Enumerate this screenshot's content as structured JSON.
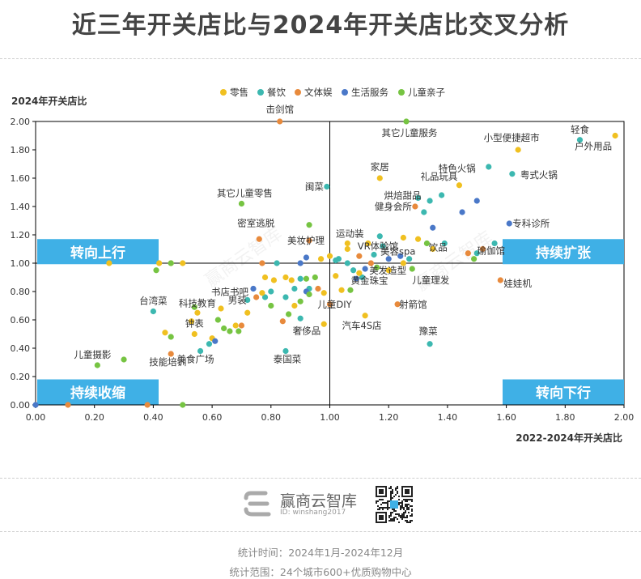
{
  "page": {
    "title": "近三年开关店比与2024年开关店比交叉分析",
    "logo_name": "赢商云智库",
    "logo_id": "ID: winshang2017",
    "footer_time": "统计时间：2024年1月-2024年12月",
    "footer_scope": "统计范围：24个城市600+优质购物中心"
  },
  "colors": {
    "零售": "#f0c020",
    "餐饮": "#3cb8b0",
    "文体娱": "#e88a3c",
    "生活服务": "#4a78c8",
    "儿童亲子": "#76c442",
    "quadrant_box": "#3fb0e6"
  },
  "chart_data": {
    "type": "scatter",
    "title": "近三年开关店比与2024年开关店比交叉分析",
    "xlabel": "2022-2024年开关店比",
    "ylabel": "2024年开关店比",
    "xlim": [
      0,
      2
    ],
    "ylim": [
      0,
      2
    ],
    "xticks": [
      "0.00",
      "0.20",
      "0.40",
      "0.60",
      "0.80",
      "1.00",
      "1.20",
      "1.40",
      "1.60",
      "1.80",
      "2.00"
    ],
    "yticks": [
      "0.00",
      "0.20",
      "0.40",
      "0.60",
      "0.80",
      "1.00",
      "1.20",
      "1.40",
      "1.60",
      "1.80",
      "2.00"
    ],
    "reference_lines": {
      "x": 1.0,
      "y": 1.0
    },
    "legend": [
      "零售",
      "餐饮",
      "文体娱",
      "生活服务",
      "儿童亲子"
    ],
    "legend_position": "top",
    "grid": false,
    "quadrant_labels": [
      "转向上行",
      "持续扩张",
      "持续收缩",
      "转向下行"
    ],
    "points": [
      {
        "x": 0.83,
        "y": 2.0,
        "c": "文体娱",
        "label": "击剑馆"
      },
      {
        "x": 1.26,
        "y": 2.0,
        "c": "儿童亲子",
        "label": "其它儿童服务"
      },
      {
        "x": 1.97,
        "y": 1.9,
        "c": "零售",
        "label": "户外用品"
      },
      {
        "x": 1.85,
        "y": 1.87,
        "c": "餐饮",
        "label": "轻食"
      },
      {
        "x": 1.64,
        "y": 1.8,
        "c": "零售",
        "label": "小型便捷超市"
      },
      {
        "x": 1.54,
        "y": 1.68,
        "c": "餐饮",
        "label": "特色火锅"
      },
      {
        "x": 1.62,
        "y": 1.63,
        "c": "餐饮",
        "label": "粤式火锅"
      },
      {
        "x": 1.17,
        "y": 1.6,
        "c": "零售",
        "label": "家居"
      },
      {
        "x": 0.99,
        "y": 1.54,
        "c": "餐饮",
        "label": "闽菜"
      },
      {
        "x": 1.44,
        "y": 1.55,
        "c": "零售",
        "label": "礼品玩具"
      },
      {
        "x": 1.3,
        "y": 1.46,
        "c": "餐饮",
        "label": "烘焙甜品"
      },
      {
        "x": 0.7,
        "y": 1.42,
        "c": "儿童亲子",
        "label": "其它儿童零售"
      },
      {
        "x": 1.29,
        "y": 1.4,
        "c": "文体娱",
        "label": "健身会所"
      },
      {
        "x": 1.61,
        "y": 1.28,
        "c": "生活服务",
        "label": "专科诊所"
      },
      {
        "x": 0.76,
        "y": 1.17,
        "c": "文体娱",
        "label": "密室逃脱"
      },
      {
        "x": 1.06,
        "y": 1.14,
        "c": "零售",
        "label": "运动装"
      },
      {
        "x": 0.93,
        "y": 1.16,
        "c": "文体娱",
        "label": "美妆护理"
      },
      {
        "x": 1.18,
        "y": 1.12,
        "c": "餐饮",
        "label": "VR体验馆"
      },
      {
        "x": 1.35,
        "y": 1.1,
        "c": "零售",
        "label": "饮品"
      },
      {
        "x": 1.52,
        "y": 1.1,
        "c": "文体娱",
        "label": "瑜伽馆"
      },
      {
        "x": 1.24,
        "y": 1.05,
        "c": "生活服务",
        "label": "美容spa"
      },
      {
        "x": 1.2,
        "y": 0.95,
        "c": "零售",
        "label": "美发造型"
      },
      {
        "x": 1.28,
        "y": 0.96,
        "c": "儿童亲子",
        "label": "儿童理发"
      },
      {
        "x": 1.58,
        "y": 0.88,
        "c": "文体娱",
        "label": "娃娃机"
      },
      {
        "x": 0.74,
        "y": 0.82,
        "c": "生活服务",
        "label": "书店书吧"
      },
      {
        "x": 1.11,
        "y": 0.9,
        "c": "餐饮",
        "label": "黄金珠宝"
      },
      {
        "x": 0.72,
        "y": 0.74,
        "c": "餐饮",
        "label": "男装"
      },
      {
        "x": 0.55,
        "y": 0.65,
        "c": "零售",
        "label": "科技教育"
      },
      {
        "x": 0.4,
        "y": 0.66,
        "c": "餐饮",
        "label": "台湾菜"
      },
      {
        "x": 1.0,
        "y": 0.71,
        "c": "文体娱",
        "label": "儿童DIY"
      },
      {
        "x": 1.23,
        "y": 0.71,
        "c": "文体娱",
        "label": "射箭馆"
      },
      {
        "x": 0.98,
        "y": 0.57,
        "c": "零售",
        "label": "奢侈品"
      },
      {
        "x": 1.12,
        "y": 0.63,
        "c": "零售",
        "label": "汽车4S店"
      },
      {
        "x": 0.54,
        "y": 0.5,
        "c": "零售",
        "label": "钟表"
      },
      {
        "x": 1.34,
        "y": 0.43,
        "c": "餐饮",
        "label": "豫菜"
      },
      {
        "x": 0.46,
        "y": 0.36,
        "c": "文体娱",
        "label": "技能培训"
      },
      {
        "x": 0.56,
        "y": 0.38,
        "c": "餐饮",
        "label": "美食广场"
      },
      {
        "x": 0.85,
        "y": 0.38,
        "c": "餐饮",
        "label": "泰国菜"
      },
      {
        "x": 0.21,
        "y": 0.28,
        "c": "儿童亲子",
        "label": "儿童摄影"
      },
      {
        "x": 0.3,
        "y": 0.32,
        "c": "儿童亲子",
        "label": ""
      },
      {
        "x": 0.0,
        "y": 0.0,
        "c": "生活服务",
        "label": ""
      },
      {
        "x": 0.38,
        "y": 0.0,
        "c": "文体娱",
        "label": ""
      },
      {
        "x": 0.5,
        "y": 0.0,
        "c": "儿童亲子",
        "label": ""
      },
      {
        "x": 0.11,
        "y": 0.0,
        "c": "文体娱",
        "label": ""
      },
      {
        "x": 0.25,
        "y": 1.0,
        "c": "零售",
        "label": ""
      },
      {
        "x": 0.42,
        "y": 1.0,
        "c": "零售",
        "label": ""
      },
      {
        "x": 0.46,
        "y": 1.0,
        "c": "零售",
        "label": ""
      },
      {
        "x": 0.5,
        "y": 1.0,
        "c": "零售",
        "label": ""
      },
      {
        "x": 0.41,
        "y": 0.95,
        "c": "儿童亲子",
        "label": ""
      },
      {
        "x": 0.46,
        "y": 1.0,
        "c": "儿童亲子",
        "label": ""
      },
      {
        "x": 0.77,
        "y": 1.0,
        "c": "文体娱",
        "label": ""
      },
      {
        "x": 0.82,
        "y": 1.0,
        "c": "餐饮",
        "label": ""
      },
      {
        "x": 0.9,
        "y": 1.0,
        "c": "生活服务",
        "label": ""
      },
      {
        "x": 0.92,
        "y": 1.04,
        "c": "生活服务",
        "label": ""
      },
      {
        "x": 0.97,
        "y": 1.03,
        "c": "零售",
        "label": ""
      },
      {
        "x": 1.0,
        "y": 1.05,
        "c": "零售",
        "label": ""
      },
      {
        "x": 1.03,
        "y": 1.03,
        "c": "餐饮",
        "label": ""
      },
      {
        "x": 0.93,
        "y": 1.27,
        "c": "儿童亲子",
        "label": ""
      },
      {
        "x": 0.85,
        "y": 0.9,
        "c": "零售",
        "label": ""
      },
      {
        "x": 0.87,
        "y": 0.88,
        "c": "零售",
        "label": ""
      },
      {
        "x": 0.81,
        "y": 0.88,
        "c": "零售",
        "label": ""
      },
      {
        "x": 0.78,
        "y": 0.9,
        "c": "零售",
        "label": ""
      },
      {
        "x": 0.9,
        "y": 0.89,
        "c": "餐饮",
        "label": ""
      },
      {
        "x": 0.92,
        "y": 0.89,
        "c": "儿童亲子",
        "label": ""
      },
      {
        "x": 0.95,
        "y": 0.9,
        "c": "儿童亲子",
        "label": ""
      },
      {
        "x": 0.93,
        "y": 0.82,
        "c": "餐饮",
        "label": ""
      },
      {
        "x": 0.88,
        "y": 0.82,
        "c": "餐饮",
        "label": ""
      },
      {
        "x": 0.92,
        "y": 0.8,
        "c": "生活服务",
        "label": ""
      },
      {
        "x": 0.96,
        "y": 0.82,
        "c": "文体娱",
        "label": ""
      },
      {
        "x": 0.98,
        "y": 0.79,
        "c": "零售",
        "label": ""
      },
      {
        "x": 0.85,
        "y": 0.76,
        "c": "餐饮",
        "label": ""
      },
      {
        "x": 0.8,
        "y": 0.8,
        "c": "餐饮",
        "label": ""
      },
      {
        "x": 0.78,
        "y": 0.76,
        "c": "餐饮",
        "label": ""
      },
      {
        "x": 0.88,
        "y": 0.7,
        "c": "零售",
        "label": ""
      },
      {
        "x": 0.9,
        "y": 0.73,
        "c": "儿童亲子",
        "label": ""
      },
      {
        "x": 0.93,
        "y": 0.78,
        "c": "儿童亲子",
        "label": ""
      },
      {
        "x": 0.8,
        "y": 0.7,
        "c": "儿童亲子",
        "label": ""
      },
      {
        "x": 0.86,
        "y": 0.64,
        "c": "儿童亲子",
        "label": ""
      },
      {
        "x": 0.84,
        "y": 0.59,
        "c": "文体娱",
        "label": ""
      },
      {
        "x": 0.9,
        "y": 0.61,
        "c": "餐饮",
        "label": ""
      },
      {
        "x": 0.77,
        "y": 0.79,
        "c": "零售",
        "label": ""
      },
      {
        "x": 1.02,
        "y": 0.91,
        "c": "零售",
        "label": ""
      },
      {
        "x": 1.04,
        "y": 0.81,
        "c": "零售",
        "label": ""
      },
      {
        "x": 1.07,
        "y": 0.81,
        "c": "儿童亲子",
        "label": ""
      },
      {
        "x": 1.02,
        "y": 1.02,
        "c": "餐饮",
        "label": ""
      },
      {
        "x": 1.06,
        "y": 1.0,
        "c": "餐饮",
        "label": ""
      },
      {
        "x": 1.08,
        "y": 0.95,
        "c": "餐饮",
        "label": ""
      },
      {
        "x": 1.1,
        "y": 0.93,
        "c": "零售",
        "label": ""
      },
      {
        "x": 1.12,
        "y": 0.96,
        "c": "生活服务",
        "label": ""
      },
      {
        "x": 1.14,
        "y": 1.0,
        "c": "文体娱",
        "label": ""
      },
      {
        "x": 1.16,
        "y": 0.97,
        "c": "儿童亲子",
        "label": ""
      },
      {
        "x": 1.1,
        "y": 1.05,
        "c": "文体娱",
        "label": ""
      },
      {
        "x": 1.15,
        "y": 1.06,
        "c": "餐饮",
        "label": ""
      },
      {
        "x": 1.13,
        "y": 1.14,
        "c": "零售",
        "label": ""
      },
      {
        "x": 1.06,
        "y": 1.1,
        "c": "零售",
        "label": ""
      },
      {
        "x": 1.09,
        "y": 0.89,
        "c": "生活服务",
        "label": ""
      },
      {
        "x": 1.25,
        "y": 1.0,
        "c": "零售",
        "label": ""
      },
      {
        "x": 1.27,
        "y": 1.03,
        "c": "餐饮",
        "label": ""
      },
      {
        "x": 1.2,
        "y": 1.03,
        "c": "生活服务",
        "label": ""
      },
      {
        "x": 1.25,
        "y": 1.18,
        "c": "零售",
        "label": ""
      },
      {
        "x": 1.3,
        "y": 1.17,
        "c": "零售",
        "label": ""
      },
      {
        "x": 1.33,
        "y": 1.14,
        "c": "儿童亲子",
        "label": ""
      },
      {
        "x": 1.39,
        "y": 1.14,
        "c": "餐饮",
        "label": ""
      },
      {
        "x": 1.17,
        "y": 1.19,
        "c": "餐饮",
        "label": ""
      },
      {
        "x": 1.35,
        "y": 1.25,
        "c": "生活服务",
        "label": ""
      },
      {
        "x": 1.32,
        "y": 1.36,
        "c": "餐饮",
        "label": ""
      },
      {
        "x": 1.38,
        "y": 1.48,
        "c": "餐饮",
        "label": ""
      },
      {
        "x": 1.34,
        "y": 1.44,
        "c": "餐饮",
        "label": ""
      },
      {
        "x": 1.45,
        "y": 1.36,
        "c": "生活服务",
        "label": ""
      },
      {
        "x": 1.5,
        "y": 1.44,
        "c": "生活服务",
        "label": ""
      },
      {
        "x": 1.47,
        "y": 1.07,
        "c": "文体娱",
        "label": ""
      },
      {
        "x": 1.56,
        "y": 1.14,
        "c": "餐饮",
        "label": ""
      },
      {
        "x": 1.5,
        "y": 1.07,
        "c": "餐饮",
        "label": ""
      },
      {
        "x": 1.49,
        "y": 1.03,
        "c": "儿童亲子",
        "label": ""
      },
      {
        "x": 0.64,
        "y": 0.54,
        "c": "儿童亲子",
        "label": ""
      },
      {
        "x": 0.68,
        "y": 0.56,
        "c": "零售",
        "label": ""
      },
      {
        "x": 0.62,
        "y": 0.6,
        "c": "儿童亲子",
        "label": ""
      },
      {
        "x": 0.66,
        "y": 0.52,
        "c": "儿童亲子",
        "label": ""
      },
      {
        "x": 0.63,
        "y": 0.68,
        "c": "零售",
        "label": ""
      },
      {
        "x": 0.72,
        "y": 0.65,
        "c": "零售",
        "label": ""
      },
      {
        "x": 0.75,
        "y": 0.76,
        "c": "文体娱",
        "label": ""
      },
      {
        "x": 0.54,
        "y": 0.69,
        "c": "儿童亲子",
        "label": ""
      },
      {
        "x": 0.44,
        "y": 0.51,
        "c": "零售",
        "label": ""
      },
      {
        "x": 0.46,
        "y": 0.48,
        "c": "儿童亲子",
        "label": ""
      },
      {
        "x": 0.6,
        "y": 0.47,
        "c": "零售",
        "label": ""
      },
      {
        "x": 0.53,
        "y": 0.59,
        "c": "零售",
        "label": ""
      },
      {
        "x": 0.59,
        "y": 0.43,
        "c": "餐饮",
        "label": ""
      },
      {
        "x": 0.61,
        "y": 0.45,
        "c": "生活服务",
        "label": ""
      },
      {
        "x": 0.7,
        "y": 0.56,
        "c": "文体娱",
        "label": ""
      },
      {
        "x": 0.69,
        "y": 0.52,
        "c": "儿童亲子",
        "label": ""
      }
    ],
    "label_offsets_note": ""
  }
}
